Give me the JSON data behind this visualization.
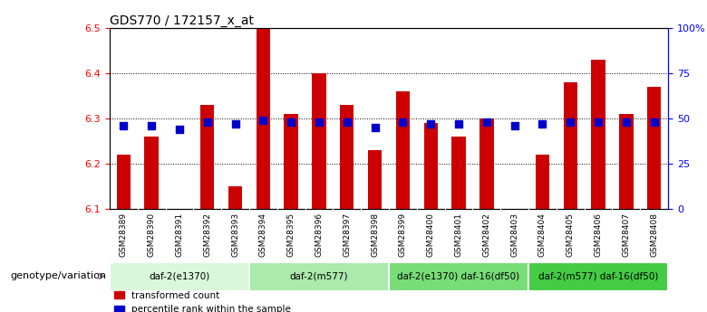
{
  "title": "GDS770 / 172157_x_at",
  "samples": [
    "GSM28389",
    "GSM28390",
    "GSM28391",
    "GSM28392",
    "GSM28393",
    "GSM28394",
    "GSM28395",
    "GSM28396",
    "GSM28397",
    "GSM28398",
    "GSM28399",
    "GSM28400",
    "GSM28401",
    "GSM28402",
    "GSM28403",
    "GSM28404",
    "GSM28405",
    "GSM28406",
    "GSM28407",
    "GSM28408"
  ],
  "transformed_count": [
    6.22,
    6.26,
    6.1,
    6.33,
    6.15,
    6.5,
    6.31,
    6.4,
    6.33,
    6.23,
    6.36,
    6.29,
    6.26,
    6.3,
    6.1,
    6.22,
    6.38,
    6.43,
    6.31,
    6.37
  ],
  "percentile_rank": [
    46,
    46,
    44,
    48,
    47,
    49,
    48,
    48,
    48,
    45,
    48,
    47,
    47,
    48,
    46,
    47,
    48,
    48,
    48,
    48
  ],
  "ylim": [
    6.1,
    6.5
  ],
  "y2lim": [
    0,
    100
  ],
  "yticks": [
    6.1,
    6.2,
    6.3,
    6.4,
    6.5
  ],
  "y2ticks": [
    0,
    25,
    50,
    75,
    100
  ],
  "y2ticklabels": [
    "0",
    "25",
    "50",
    "75",
    "100%"
  ],
  "bar_color": "#cc0000",
  "dot_color": "#0000cc",
  "bar_width": 0.5,
  "dot_size": 30,
  "groups": [
    {
      "label": "daf-2(e1370)",
      "start": 0,
      "end": 5,
      "color": "#d9f7d9"
    },
    {
      "label": "daf-2(m577)",
      "start": 5,
      "end": 10,
      "color": "#aaeaaa"
    },
    {
      "label": "daf-2(e1370) daf-16(df50)",
      "start": 10,
      "end": 15,
      "color": "#77dd77"
    },
    {
      "label": "daf-2(m577) daf-16(df50)",
      "start": 15,
      "end": 20,
      "color": "#44cc44"
    }
  ],
  "group_label_prefix": "genotype/variation",
  "legend_items": [
    {
      "label": "transformed count",
      "color": "#cc0000"
    },
    {
      "label": "percentile rank within the sample",
      "color": "#0000cc"
    }
  ],
  "background_color": "#ffffff",
  "grid_color": "#000000",
  "xtick_bg": "#cccccc"
}
